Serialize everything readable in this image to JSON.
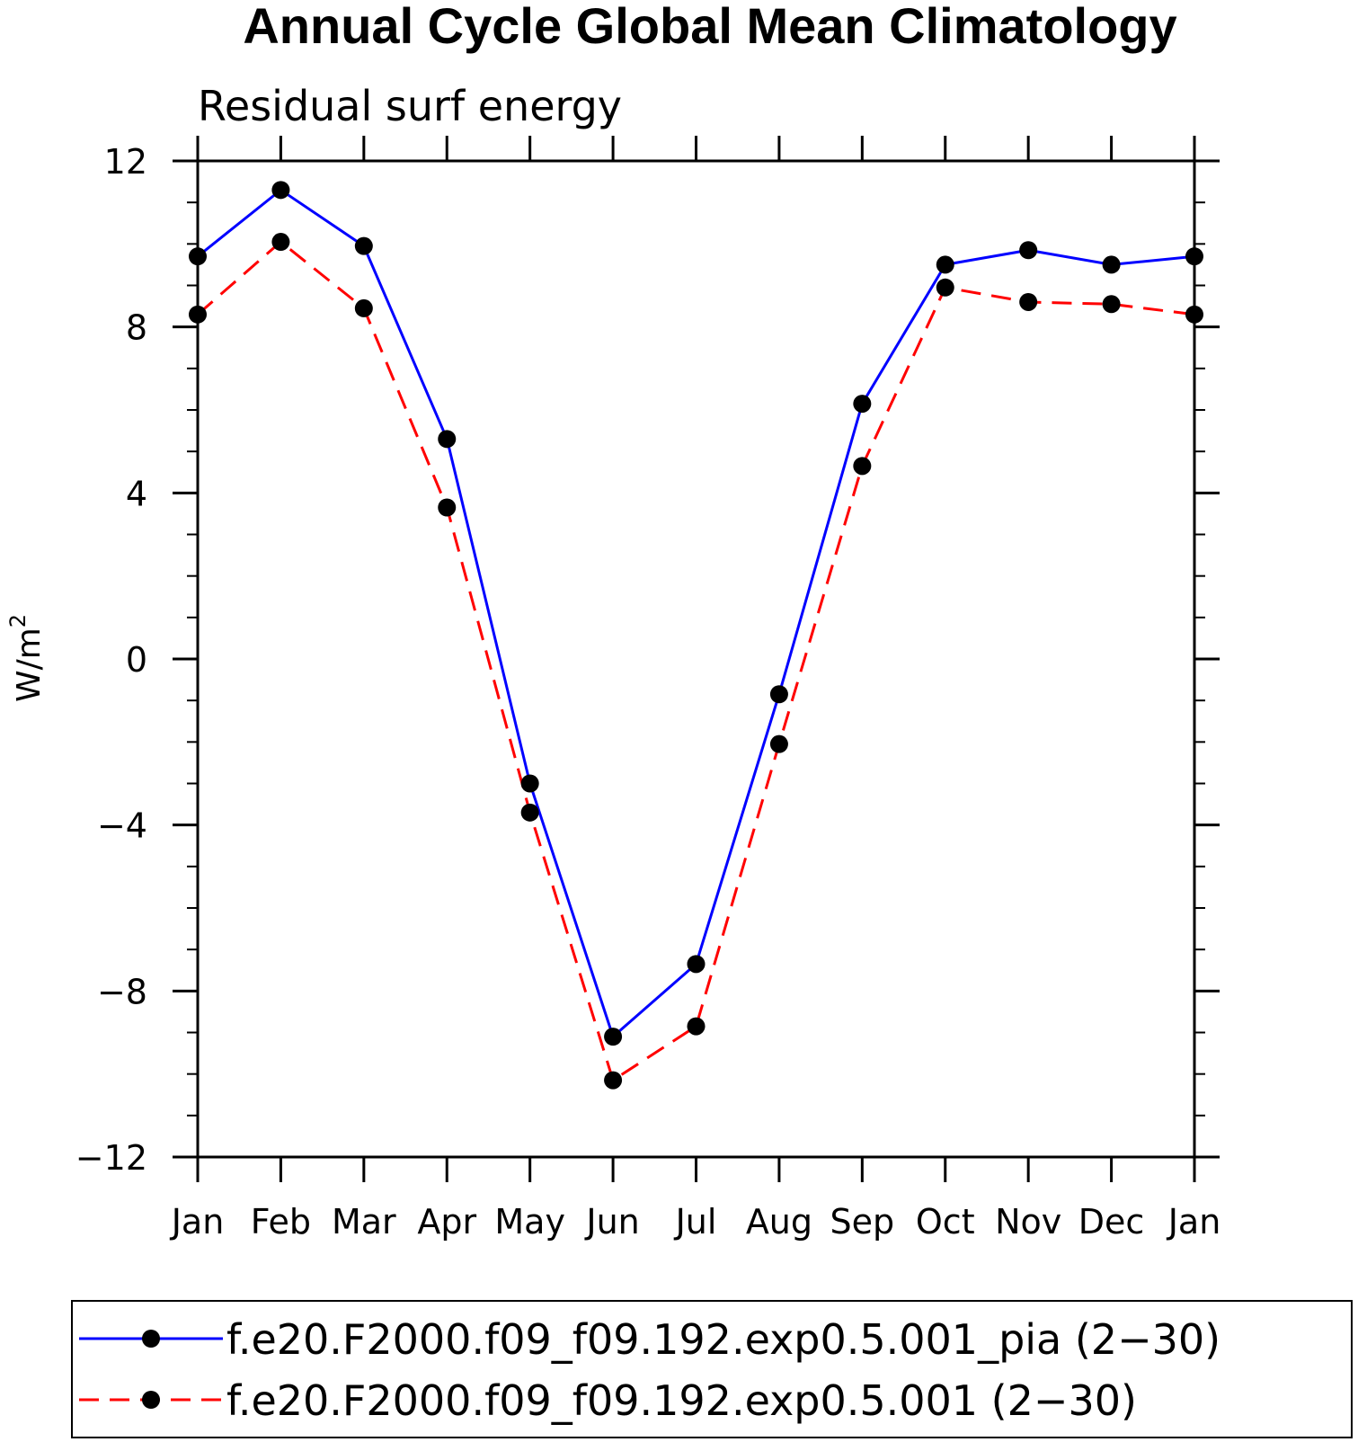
{
  "chart_data": {
    "type": "line",
    "title": "Annual Cycle Global Mean Climatology",
    "subtitle": "Residual surf energy",
    "ylabel": "W/m",
    "ylabel_superscript": "2",
    "xlabel": "",
    "categories": [
      "Jan",
      "Feb",
      "Mar",
      "Apr",
      "May",
      "Jun",
      "Jul",
      "Aug",
      "Sep",
      "Oct",
      "Nov",
      "Dec",
      "Jan"
    ],
    "ylim": [
      -12,
      12
    ],
    "yticks": [
      12,
      8,
      4,
      0,
      -4,
      -8,
      -12
    ],
    "ytick_labels": [
      "12",
      "8",
      "4",
      "0",
      "−4",
      "−8",
      "−12"
    ],
    "grid": false,
    "legend_placement": "bottom",
    "series": [
      {
        "name": "f.e20.F2000.f09_f09.192.exp0.5.001_pia (2−30)",
        "color": "#0000ff",
        "dash": "solid",
        "values": [
          9.7,
          11.3,
          9.95,
          5.3,
          -3.0,
          -9.1,
          -7.35,
          -0.85,
          6.15,
          9.5,
          9.85,
          9.5,
          9.7
        ]
      },
      {
        "name": "f.e20.F2000.f09_f09.192.exp0.5.001 (2−30)",
        "color": "#ff0000",
        "dash": "dashed",
        "values": [
          8.3,
          10.05,
          8.45,
          3.65,
          -3.7,
          -10.15,
          -8.85,
          -2.05,
          4.65,
          8.95,
          8.6,
          8.55,
          8.3
        ]
      }
    ]
  }
}
